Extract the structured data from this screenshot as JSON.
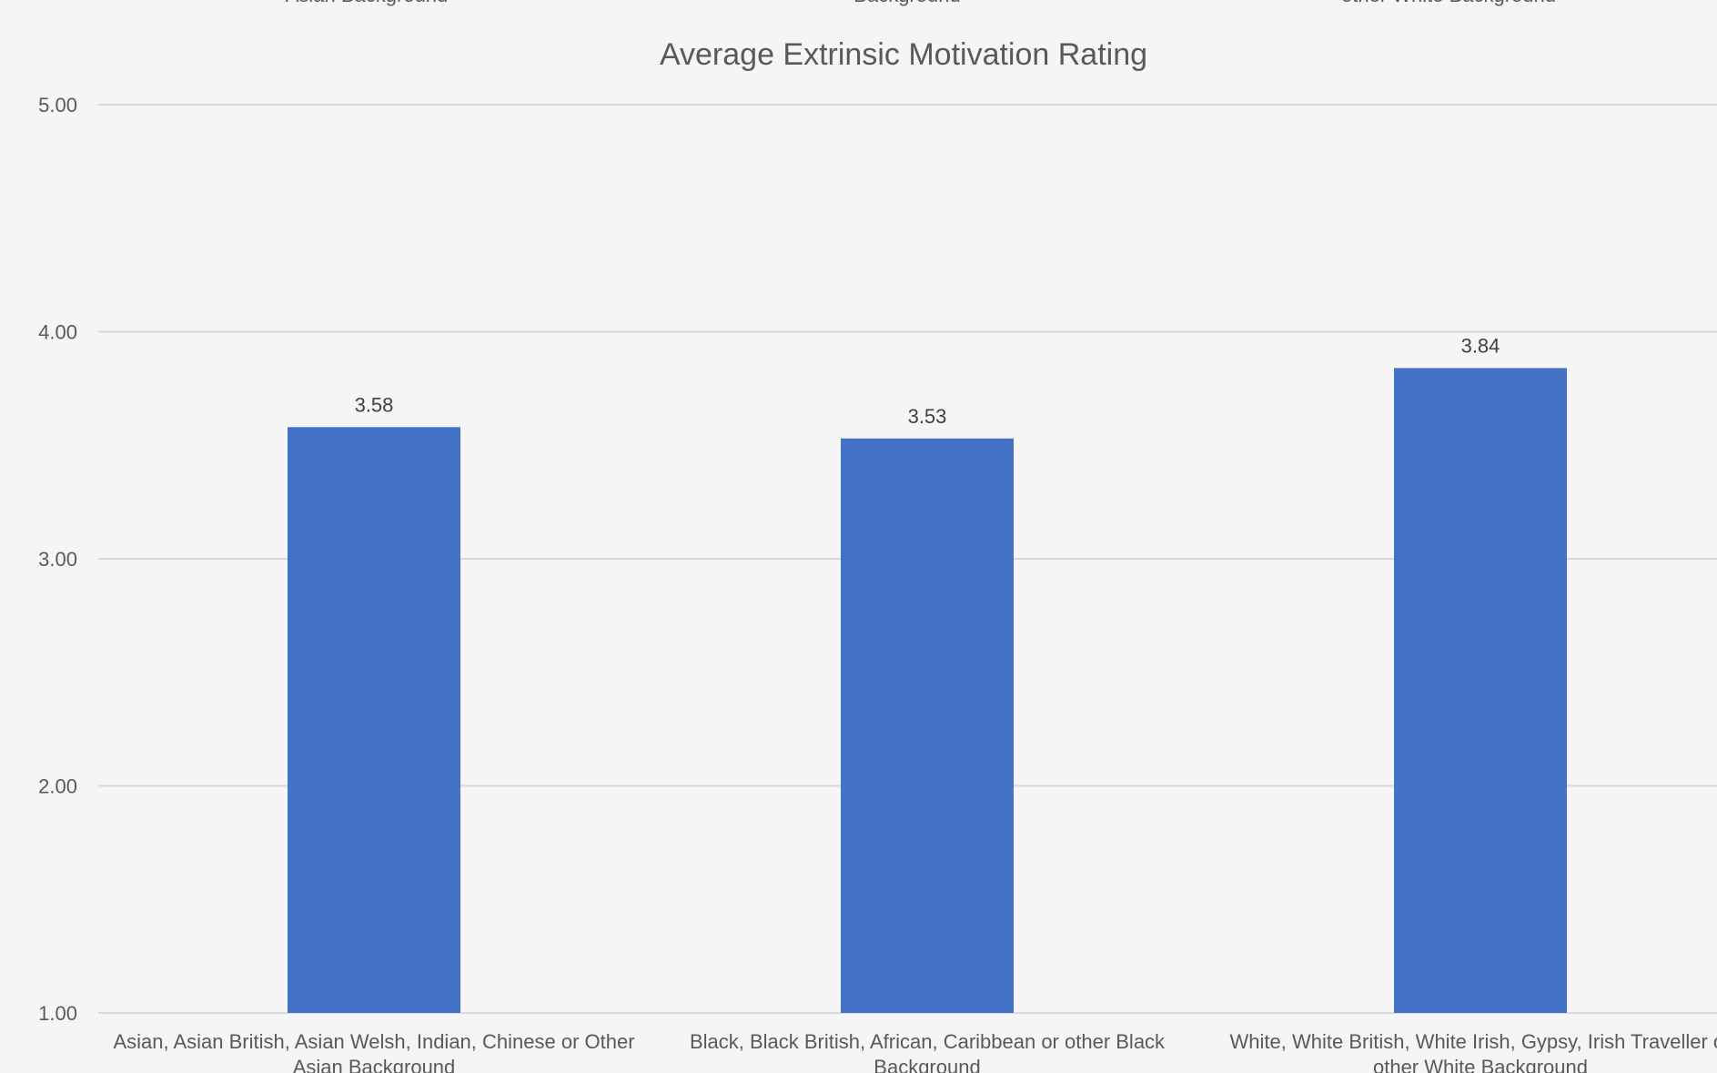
{
  "top_cropped_labels": [
    "Asian Background",
    "Background",
    "other White Background"
  ],
  "chart_data": {
    "type": "bar",
    "title": "Average Extrinsic Motivation Rating",
    "xlabel": "",
    "ylabel": "",
    "categories": [
      [
        "Asian, Asian British, Asian Welsh, Indian, Chinese or Other",
        "Asian Background"
      ],
      [
        "Black, Black British, African, Caribbean or other Black",
        "Background"
      ],
      [
        "White, White British, White Irish, Gypsy, Irish Traveller or",
        "other White Background"
      ]
    ],
    "values": [
      3.58,
      3.53,
      3.84
    ],
    "data_labels": [
      "3.58",
      "3.53",
      "3.84"
    ],
    "ylim": [
      1,
      5
    ],
    "y_ticks": [
      1,
      2,
      3,
      4,
      5
    ],
    "y_tick_labels": [
      "1.00",
      "2.00",
      "3.00",
      "4.00",
      "5.00"
    ],
    "grid": true,
    "legend": "none",
    "bar_color": "#4472c4"
  }
}
